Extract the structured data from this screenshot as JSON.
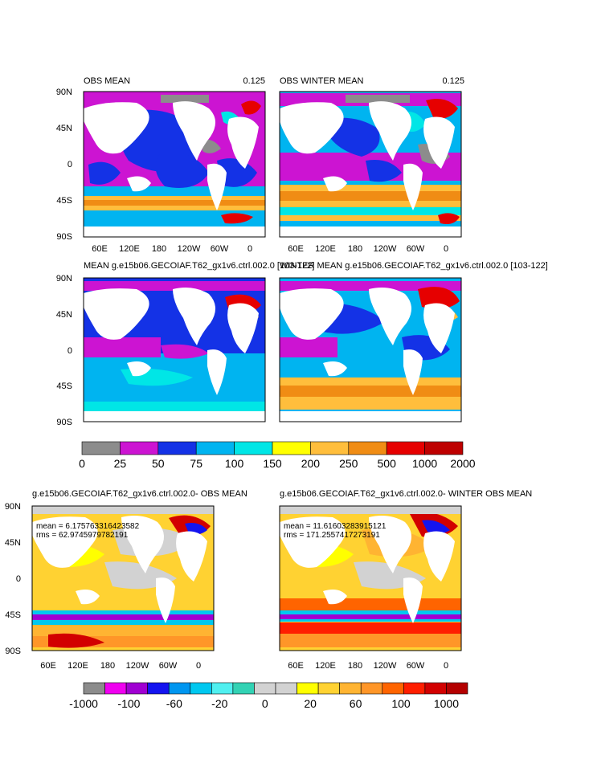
{
  "top_panels": [
    {
      "title_left": "OBS MEAN",
      "title_right": "0.125"
    },
    {
      "title_left": "OBS WINTER MEAN",
      "title_right": "0.125"
    },
    {
      "title_left": "MEAN g.e15b06.GECOIAF.T62_gx1v6.ctrl.002.0 [103-122]",
      "title_right": ""
    },
    {
      "title_left": "WINTER MEAN g.e15b06.GECOIAF.T62_gx1v6.ctrl.002.0 [103-122]",
      "title_right": ""
    }
  ],
  "diff_panels": [
    {
      "title": "g.e15b06.GECOIAF.T62_gx1v6.ctrl.002.0- OBS MEAN",
      "mean_text": "mean = 6.17576331642358​2",
      "rms_text": "rms = 62.9745979782191"
    },
    {
      "title": "g.e15b06.GECOIAF.T62_gx1v6.ctrl.002.0- WINTER OBS MEAN",
      "mean_text": "mean = 11.6160328391512​1",
      "rms_text": "rms = 171.2557417273191"
    }
  ],
  "lat_labels": [
    "90N",
    "45N",
    "0",
    "45S",
    "90S"
  ],
  "lon_labels": [
    "60E",
    "120E",
    "180",
    "120W",
    "60W",
    "0"
  ],
  "colorbar_top": {
    "colors": [
      "#8c8c8c",
      "#cc14d2",
      "#1432e6",
      "#00b4f0",
      "#00e6e6",
      "#ffff00",
      "#ffbe3c",
      "#f08c14",
      "#e60000",
      "#be0000"
    ],
    "labels": [
      "0",
      "25",
      "50",
      "75",
      "100",
      "150",
      "200",
      "250",
      "500",
      "1000",
      "2000"
    ]
  },
  "colorbar_bottom": {
    "colors": [
      "#8c8c8c",
      "#f000f0",
      "#a000d2",
      "#1414f0",
      "#0096f0",
      "#00c8f0",
      "#50f0f0",
      "#32d2b4",
      "#d2d2d2",
      "#d2d2d2",
      "#ffff00",
      "#ffd232",
      "#ffb432",
      "#ff9628",
      "#ff6400",
      "#ff1e00",
      "#d20000",
      "#b40000"
    ],
    "labels": [
      "-1000",
      "-100",
      "-60",
      "-20",
      "0",
      "20",
      "60",
      "100",
      "1000"
    ]
  },
  "colors": {
    "land": "#ffffff",
    "frame": "#000000"
  }
}
